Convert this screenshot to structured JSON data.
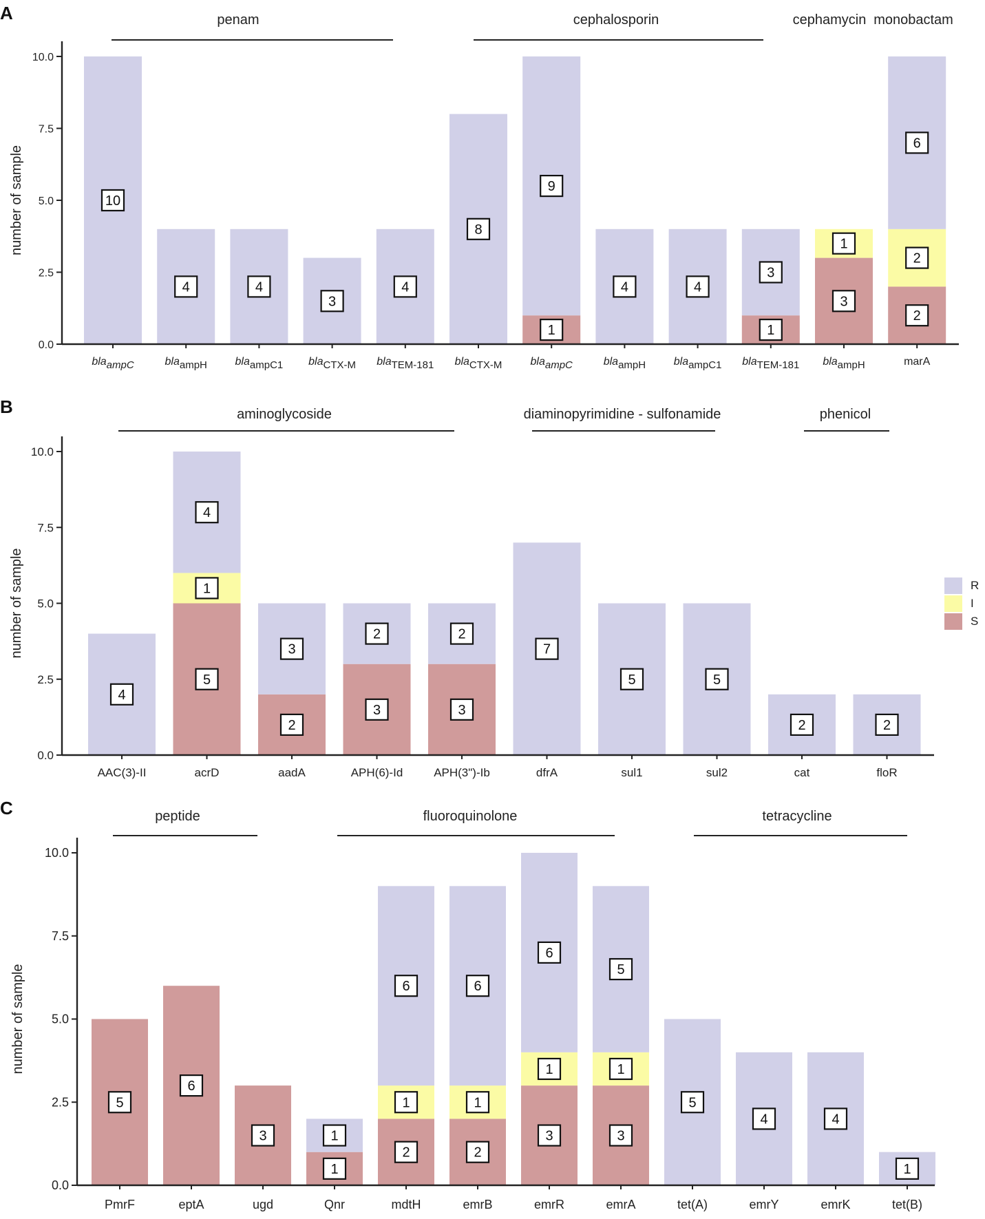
{
  "figure": {
    "legend": [
      {
        "label": "R",
        "color": "#d1d0e8"
      },
      {
        "label": "I",
        "color": "#fbfba5"
      },
      {
        "label": "S",
        "color": "#d09b9b"
      }
    ]
  },
  "chart_data": [
    {
      "panel_label": "A",
      "type": "bar",
      "stacked": true,
      "ylabel": "number of sample",
      "ylim": [
        0,
        10.5
      ],
      "yticks": [
        "0.0",
        "2.5",
        "5.0",
        "7.5",
        "10.0"
      ],
      "categories": [
        {
          "prefix": "bla",
          "sub": "ampC",
          "italic_sub": true
        },
        {
          "prefix": "bla",
          "sub": "ampH",
          "italic_sub": false
        },
        {
          "prefix": "bla",
          "sub": "ampC1",
          "italic_sub": false
        },
        {
          "prefix": "bla",
          "sub": "CTX-M",
          "italic_sub": false
        },
        {
          "prefix": "bla",
          "sub": "TEM-181",
          "italic_sub": false
        },
        {
          "prefix": "bla",
          "sub": "CTX-M",
          "italic_sub": false
        },
        {
          "prefix": "bla",
          "sub": "ampC",
          "italic_sub": true
        },
        {
          "prefix": "bla",
          "sub": "ampH",
          "italic_sub": false
        },
        {
          "prefix": "bla",
          "sub": "ampC1",
          "italic_sub": false
        },
        {
          "prefix": "bla",
          "sub": "TEM-181",
          "italic_sub": false
        },
        {
          "prefix": "bla",
          "sub": "ampH",
          "italic_sub": false
        },
        {
          "prefix": "",
          "sub": "",
          "text": "marA"
        }
      ],
      "series": [
        {
          "name": "S",
          "values": [
            0,
            0,
            0,
            0,
            0,
            0,
            1,
            0,
            0,
            1,
            3,
            2
          ]
        },
        {
          "name": "I",
          "values": [
            0,
            0,
            0,
            0,
            0,
            0,
            0,
            0,
            0,
            0,
            1,
            2
          ]
        },
        {
          "name": "R",
          "values": [
            10,
            4,
            4,
            3,
            4,
            8,
            9,
            4,
            4,
            3,
            0,
            6
          ]
        }
      ],
      "groups": [
        {
          "label": "penam",
          "from": 0,
          "to": 4
        },
        {
          "label": "cephalosporin",
          "from": 5,
          "to": 9
        },
        {
          "label": "cephamycin",
          "from": 10,
          "to": 10
        },
        {
          "label": "monobactam",
          "from": 11,
          "to": 11
        }
      ]
    },
    {
      "panel_label": "B",
      "type": "bar",
      "stacked": true,
      "ylabel": "number of sample",
      "ylim": [
        0,
        10.5
      ],
      "yticks": [
        "0.0",
        "2.5",
        "5.0",
        "7.5",
        "10.0"
      ],
      "categories": [
        {
          "text": "AAC(3)-II"
        },
        {
          "text": "acrD"
        },
        {
          "text": "aadA"
        },
        {
          "text": "APH(6)-Id"
        },
        {
          "text": "APH(3\")-Ib"
        },
        {
          "text": "dfrA"
        },
        {
          "text": "sul1"
        },
        {
          "text": "sul2"
        },
        {
          "text": "cat"
        },
        {
          "text": "floR"
        }
      ],
      "series": [
        {
          "name": "S",
          "values": [
            0,
            5,
            2,
            3,
            3,
            0,
            0,
            0,
            0,
            0
          ]
        },
        {
          "name": "I",
          "values": [
            0,
            1,
            0,
            0,
            0,
            0,
            0,
            0,
            0,
            0
          ]
        },
        {
          "name": "R",
          "values": [
            4,
            4,
            3,
            2,
            2,
            7,
            5,
            5,
            2,
            2
          ]
        }
      ],
      "groups": [
        {
          "label": "aminoglycoside",
          "from": 0,
          "to": 4
        },
        {
          "label": "diaminopyrimidine - sulfonamide",
          "from": 5,
          "to": 7
        },
        {
          "label": "phenicol",
          "from": 8,
          "to": 9
        }
      ]
    },
    {
      "panel_label": "C",
      "type": "bar",
      "stacked": true,
      "ylabel": "number of sample",
      "ylim": [
        0,
        10.5
      ],
      "yticks": [
        "0.0",
        "2.5",
        "5.0",
        "7.5",
        "10.0"
      ],
      "categories": [
        {
          "text": "PmrF"
        },
        {
          "text": "eptA"
        },
        {
          "text": "ugd"
        },
        {
          "text": "Qnr"
        },
        {
          "text": "mdtH"
        },
        {
          "text": "emrB"
        },
        {
          "text": "emrR"
        },
        {
          "text": "emrA"
        },
        {
          "text": "tet(A)"
        },
        {
          "text": "emrY"
        },
        {
          "text": "emrK"
        },
        {
          "text": "tet(B)"
        }
      ],
      "series": [
        {
          "name": "S",
          "values": [
            5,
            6,
            3,
            1,
            2,
            2,
            3,
            3,
            0,
            0,
            0,
            0
          ]
        },
        {
          "name": "I",
          "values": [
            0,
            0,
            0,
            0,
            1,
            1,
            1,
            1,
            0,
            0,
            0,
            0
          ]
        },
        {
          "name": "R",
          "values": [
            0,
            0,
            0,
            1,
            6,
            6,
            6,
            5,
            5,
            4,
            4,
            1
          ]
        }
      ],
      "groups": [
        {
          "label": "peptide",
          "from": 0,
          "to": 2
        },
        {
          "label": "fluoroquinolone",
          "from": 3,
          "to": 7
        },
        {
          "label": "tetracycline",
          "from": 8,
          "to": 11
        }
      ]
    }
  ]
}
